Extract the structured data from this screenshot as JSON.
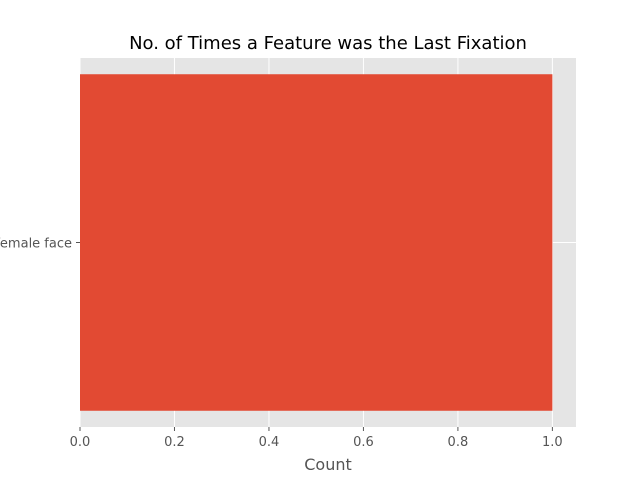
{
  "chart_data": {
    "type": "bar",
    "orientation": "horizontal",
    "title": "No. of Times a Feature was the Last Fixation",
    "xlabel": "Count",
    "ylabel": "",
    "categories": [
      "female face"
    ],
    "values": [
      1
    ],
    "xlim": [
      0,
      1.05
    ],
    "xticks": [
      "0.0",
      "0.2",
      "0.4",
      "0.6",
      "0.8",
      "1.0"
    ],
    "grid": true,
    "legend": "none",
    "colors": {
      "bar": "#E24A33",
      "plot_background": "#E5E5E5",
      "grid": "#FFFFFF",
      "text": "#555555"
    }
  }
}
